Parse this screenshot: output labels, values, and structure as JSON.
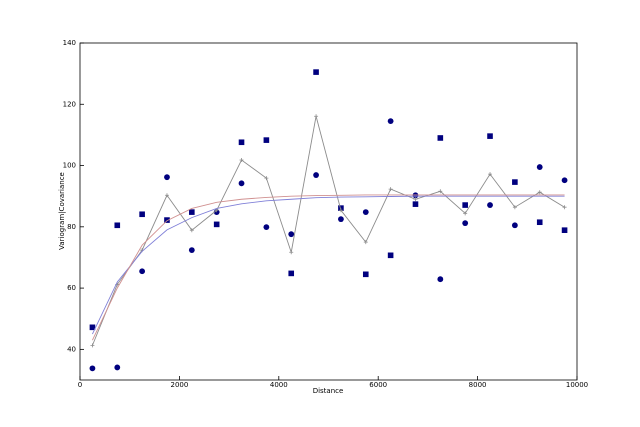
{
  "chart_data": {
    "type": "line",
    "xlabel": "Distance",
    "ylabel": "Variogram|Covariance",
    "x": [
      250,
      750,
      1250,
      1750,
      2250,
      2750,
      3250,
      3750,
      4250,
      4750,
      5250,
      5750,
      6250,
      6750,
      7250,
      7750,
      8250,
      8750,
      9250,
      9750
    ],
    "xlim": [
      0,
      10000
    ],
    "xticks": [
      0,
      2000,
      4000,
      6000,
      8000,
      10000
    ],
    "ylim": [
      30,
      140
    ],
    "yticks": [
      40,
      60,
      80,
      100,
      120,
      140
    ],
    "series": [
      {
        "marker": "square",
        "color": "#00007f",
        "values": [
          47.2,
          80.5,
          84.1,
          82.2,
          84.8,
          80.8,
          107.6,
          108.3,
          64.8,
          130.5,
          86.1,
          64.5,
          70.7,
          87.4,
          109,
          87.1,
          109.6,
          94.6,
          81.5,
          78.9
        ]
      },
      {
        "marker": "circle",
        "color": "#00007f",
        "values": [
          33.8,
          34.1,
          65.5,
          96.2,
          72.4,
          84.8,
          94.2,
          79.9,
          77.6,
          96.9,
          82.5,
          84.8,
          114.5,
          90.3,
          62.9,
          81.2,
          87.1,
          80.5,
          99.5,
          95.2
        ]
      },
      {
        "marker": "plus",
        "color": "#8c8c8c",
        "values": [
          41.3,
          61.2,
          72.4,
          90.3,
          78.9,
          85.4,
          101.8,
          95.9,
          71.7,
          116.1,
          85.4,
          75.0,
          92.3,
          89.0,
          91.6,
          84.4,
          97.2,
          86.4,
          91.3,
          86.4
        ]
      },
      {
        "marker": "none",
        "color": "#8080d8",
        "values": [
          45,
          62,
          72,
          79,
          83,
          86,
          87.5,
          88.5,
          89,
          89.5,
          89.7,
          89.8,
          89.9,
          90,
          90,
          90,
          90,
          90,
          90,
          90
        ]
      },
      {
        "marker": "none",
        "color": "#d09090",
        "values": [
          43,
          60,
          74,
          82,
          86,
          88,
          89,
          89.6,
          90,
          90.2,
          90.3,
          90.4,
          90.4,
          90.4,
          90.4,
          90.4,
          90.4,
          90.4,
          90.4,
          90.4
        ]
      }
    ]
  }
}
